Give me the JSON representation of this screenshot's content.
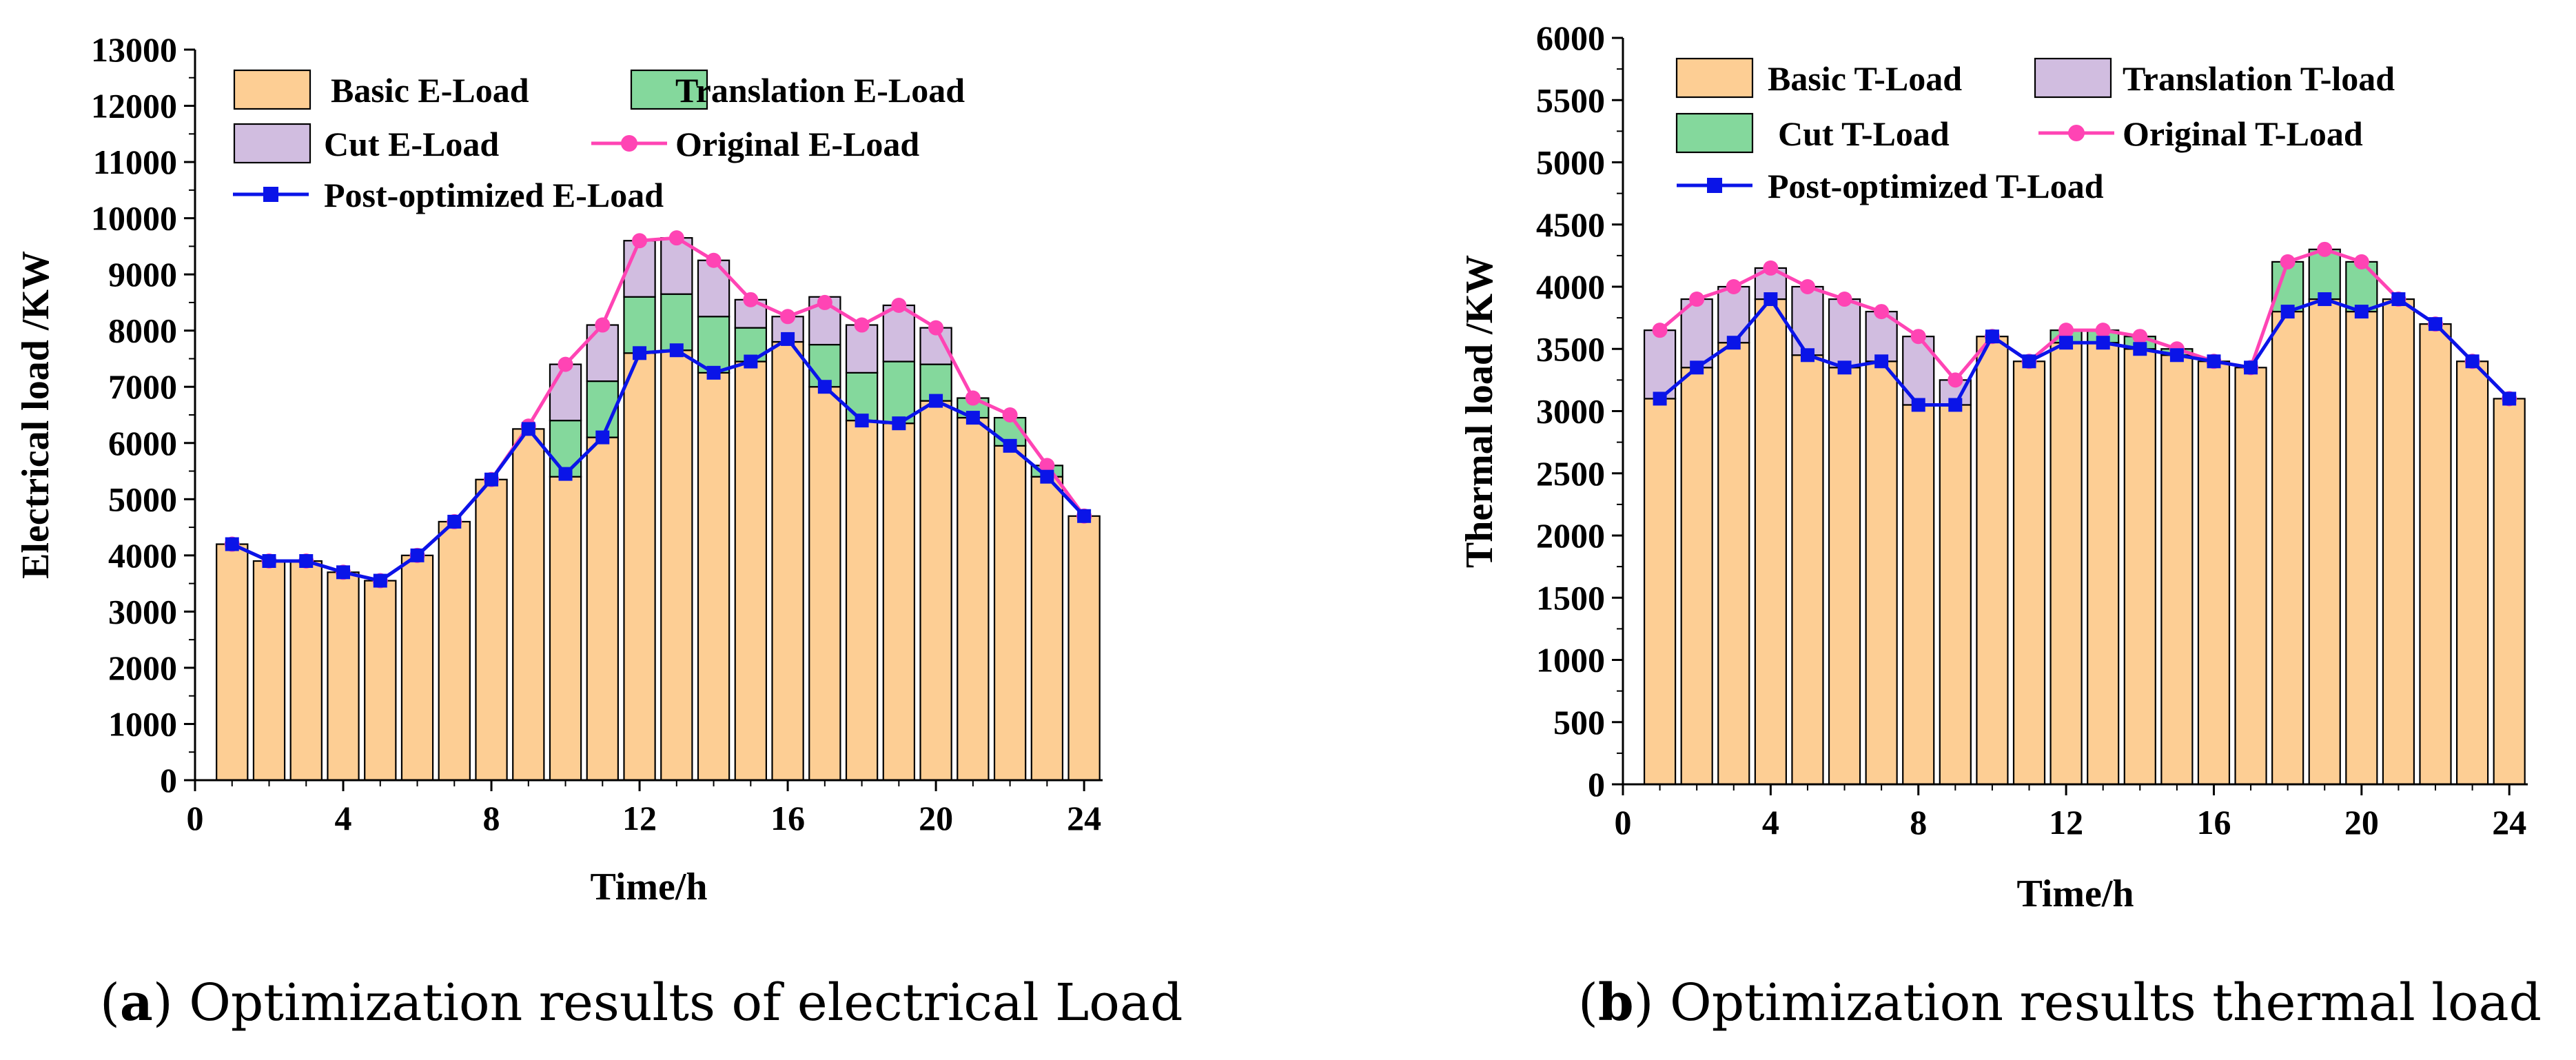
{
  "colors": {
    "basic": "#fdce94",
    "translation": "#84d89c",
    "cut": "#d1bde0",
    "original": "#ff44b4",
    "optimized": "#0a14e8"
  },
  "captions": {
    "a_letter": "a",
    "a_text": " Optimization results of electrical Load",
    "b_letter": "b",
    "b_text": " Optimization results thermal load"
  },
  "chart_data": [
    {
      "type": "bar",
      "stacked": true,
      "xlabel": "Time/h",
      "ylabel": "Electrical load /KW",
      "xlim": [
        0,
        24.5
      ],
      "ylim": [
        0,
        13000
      ],
      "xticks": [
        0,
        4,
        8,
        12,
        16,
        20,
        24
      ],
      "yticks": [
        0,
        1000,
        2000,
        3000,
        4000,
        5000,
        6000,
        7000,
        8000,
        9000,
        10000,
        11000,
        12000,
        13000
      ],
      "legend_position": "top-left",
      "legend": [
        "Basic E-Load",
        "Translation E-Load",
        "Cut E-Load",
        "Original E-Load",
        "Post-optimized E-Load"
      ],
      "x": [
        1,
        2,
        3,
        4,
        5,
        6,
        7,
        8,
        9,
        10,
        11,
        12,
        13,
        14,
        15,
        16,
        17,
        18,
        19,
        20,
        21,
        22,
        23,
        24
      ],
      "series": [
        {
          "name": "Basic E-Load",
          "kind": "bar",
          "values": [
            4200,
            3900,
            3900,
            3700,
            3550,
            4000,
            4600,
            5350,
            6250,
            5400,
            6100,
            7600,
            7650,
            7250,
            7450,
            7800,
            7000,
            6400,
            6350,
            6750,
            6450,
            5950,
            5400,
            4700
          ]
        },
        {
          "name": "Translation E-Load",
          "kind": "bar",
          "values": [
            0,
            0,
            0,
            0,
            0,
            0,
            0,
            0,
            0,
            1000,
            1000,
            1000,
            1000,
            1000,
            600,
            0,
            750,
            850,
            1100,
            650,
            350,
            500,
            200,
            0
          ]
        },
        {
          "name": "Cut E-Load",
          "kind": "bar",
          "values": [
            0,
            0,
            0,
            0,
            0,
            0,
            0,
            0,
            0,
            1000,
            1000,
            1000,
            1000,
            1000,
            500,
            450,
            850,
            850,
            1000,
            650,
            0,
            0,
            0,
            0
          ]
        },
        {
          "name": "Original E-Load",
          "kind": "line",
          "values": [
            4200,
            3900,
            3900,
            3700,
            3550,
            4000,
            4600,
            5350,
            6300,
            7400,
            8100,
            9600,
            9650,
            9250,
            8550,
            8250,
            8500,
            8100,
            8450,
            8050,
            6800,
            6500,
            5600,
            4700
          ]
        },
        {
          "name": "Post-optimized E-Load",
          "kind": "line",
          "values": [
            4200,
            3900,
            3900,
            3700,
            3550,
            4000,
            4600,
            5350,
            6250,
            5450,
            6100,
            7600,
            7650,
            7250,
            7450,
            7850,
            7000,
            6400,
            6350,
            6750,
            6450,
            5950,
            5400,
            4700
          ]
        }
      ]
    },
    {
      "type": "bar",
      "stacked": true,
      "xlabel": "Time/h",
      "ylabel": "Thermal load /KW",
      "xlim": [
        0,
        24.5
      ],
      "ylim": [
        0,
        6000
      ],
      "xticks": [
        0,
        4,
        8,
        12,
        16,
        20,
        24
      ],
      "yticks": [
        0,
        500,
        1000,
        1500,
        2000,
        2500,
        3000,
        3500,
        4000,
        4500,
        5000,
        5500,
        6000
      ],
      "legend_position": "top-left",
      "legend": [
        "Basic T-Load",
        "Translation T-load",
        "Cut T-Load",
        "Original T-Load",
        "Post-optimized T-Load"
      ],
      "x": [
        1,
        2,
        3,
        4,
        5,
        6,
        7,
        8,
        9,
        10,
        11,
        12,
        13,
        14,
        15,
        16,
        17,
        18,
        19,
        20,
        21,
        22,
        23,
        24
      ],
      "series": [
        {
          "name": "Basic T-Load",
          "kind": "bar",
          "values": [
            3100,
            3350,
            3550,
            3900,
            3450,
            3350,
            3400,
            3050,
            3050,
            3600,
            3400,
            3550,
            3550,
            3500,
            3450,
            3400,
            3350,
            3800,
            3900,
            3800,
            3900,
            3700,
            3400,
            3100
          ]
        },
        {
          "name": "Cut T-Load",
          "kind": "bar",
          "values": [
            550,
            550,
            450,
            250,
            550,
            550,
            400,
            550,
            200,
            0,
            0,
            0,
            0,
            0,
            0,
            0,
            0,
            0,
            0,
            0,
            0,
            0,
            0,
            0
          ]
        },
        {
          "name": "Translation T-load",
          "kind": "bar",
          "values": [
            0,
            0,
            0,
            0,
            0,
            0,
            0,
            0,
            0,
            0,
            0,
            100,
            100,
            100,
            50,
            0,
            0,
            400,
            400,
            400,
            0,
            0,
            0,
            0
          ]
        },
        {
          "name": "Original T-Load",
          "kind": "line",
          "values": [
            3650,
            3900,
            4000,
            4150,
            4000,
            3900,
            3800,
            3600,
            3250,
            3600,
            3400,
            3650,
            3650,
            3600,
            3500,
            3400,
            3350,
            4200,
            4300,
            4200,
            3900,
            3700,
            3400,
            3100
          ]
        },
        {
          "name": "Post-optimized T-Load",
          "kind": "line",
          "values": [
            3100,
            3350,
            3550,
            3900,
            3450,
            3350,
            3400,
            3050,
            3050,
            3600,
            3400,
            3550,
            3550,
            3500,
            3450,
            3400,
            3350,
            3800,
            3900,
            3800,
            3900,
            3700,
            3400,
            3100
          ]
        }
      ]
    }
  ]
}
